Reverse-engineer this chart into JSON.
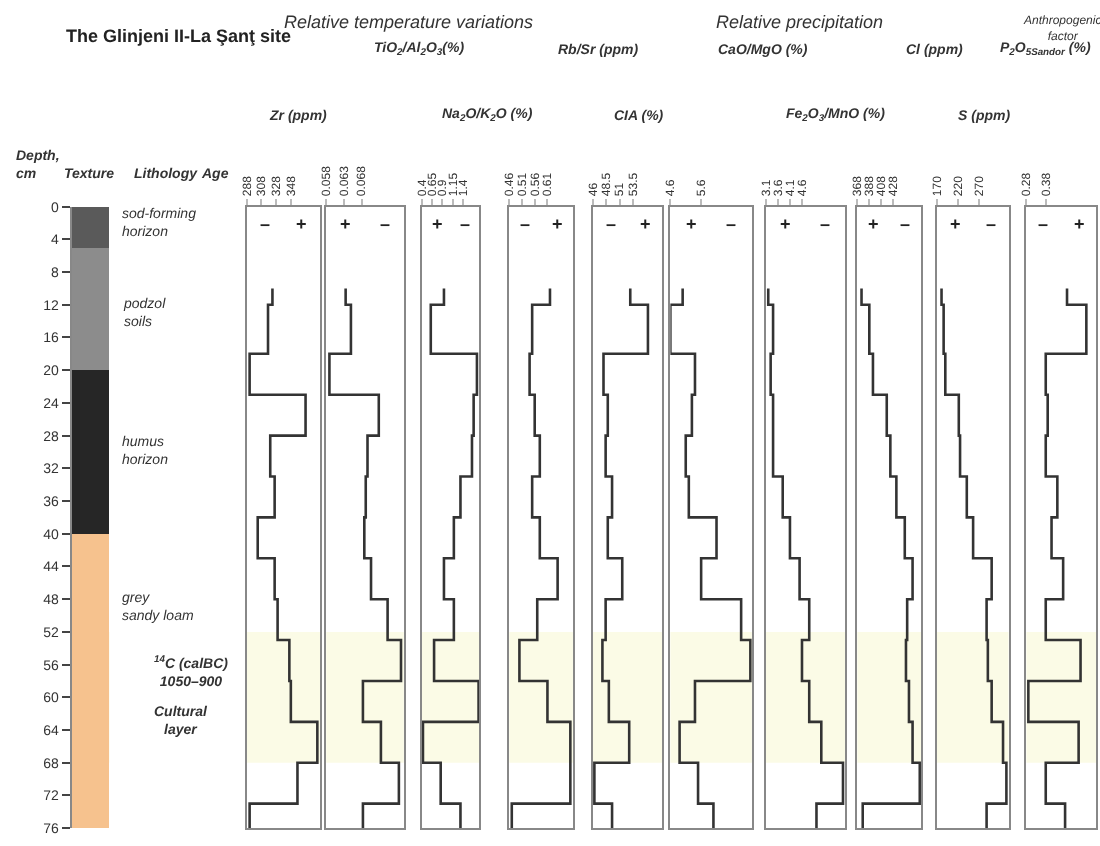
{
  "chart_data": [
    {
      "type": "bar",
      "stacked": true,
      "title": "The Glinjeni II-La Şanţ site",
      "ylabel": "Depth, cm",
      "categories": [
        null
      ],
      "ylim": [
        76,
        0
      ],
      "yticks": [
        0,
        4,
        8,
        12,
        16,
        20,
        24,
        28,
        32,
        36,
        40,
        44,
        48,
        52,
        56,
        60,
        64,
        68,
        72,
        76
      ],
      "tick_labels": "y",
      "series": [
        {
          "color": "#5a5a5a",
          "values": [
            5
          ]
        },
        {
          "color": "#8c8c8c",
          "values": [
            15
          ]
        },
        {
          "color": "#262626",
          "values": [
            20
          ]
        },
        {
          "color": "#f6c28e",
          "values": [
            36
          ]
        }
      ],
      "bands": [
        {
          "axis": "y",
          "from": 52,
          "to": 68,
          "color": "#fbfbe6"
        }
      ],
      "annotations": [
        "Texture",
        "Lithology",
        "Age",
        "sod-forming horizon",
        "podzol soils",
        "humus horizon",
        "grey sandy loam",
        "$^{14}$C (calBC) 1050–900",
        "Cultural layer"
      ]
    },
    {
      "type": "step",
      "orientation": "horizontal",
      "xlabel": "Zr (ppm)",
      "x": [
        10,
        12,
        18,
        23,
        28,
        33,
        38,
        43,
        48,
        53,
        58,
        63,
        68,
        73,
        76
      ],
      "values": [
        323,
        317,
        292,
        368,
        320,
        326,
        303,
        326,
        330,
        346,
        348,
        384,
        357,
        292,
        292
      ],
      "color": "#333333",
      "xlim": [
        288,
        388
      ],
      "xticks": [
        288,
        308,
        328,
        348
      ],
      "ylim": [
        76,
        0
      ],
      "tick_labels": "x",
      "bands": [
        {
          "axis": "y",
          "from": 52,
          "to": 68,
          "color": "#fbfbe6"
        }
      ],
      "annotations": [
        "–",
        "+",
        "Relative temperature variations"
      ]
    },
    {
      "type": "step",
      "orientation": "horizontal",
      "xlabel": "TiO$_{2}$/Al$_{2}$O$_{3}$(%)",
      "x": [
        10,
        12,
        18,
        23,
        28,
        33,
        38,
        43,
        48,
        53,
        58,
        63,
        68,
        73,
        76
      ],
      "values": [
        0.0635,
        0.065,
        0.0589,
        0.0729,
        0.0697,
        0.0692,
        0.0688,
        0.0707,
        0.0754,
        0.0792,
        0.0684,
        0.0735,
        0.0786,
        0.0684,
        0.0684
      ],
      "color": "#333333",
      "xlim": [
        0.058,
        0.08
      ],
      "xticks": [
        0.058,
        0.063,
        0.068
      ],
      "ylim": [
        76,
        0
      ],
      "tick_labels": "x",
      "bands": [
        {
          "axis": "y",
          "from": 52,
          "to": 68,
          "color": "#fbfbe6"
        }
      ],
      "annotations": [
        "+",
        "–"
      ]
    },
    {
      "type": "step",
      "orientation": "horizontal",
      "xlabel": "Na$_{2}$O/K$_{2}$O (%)",
      "x": [
        10,
        12,
        18,
        23,
        28,
        33,
        38,
        43,
        48,
        53,
        58,
        63,
        68,
        73,
        76
      ],
      "values": [
        0.94,
        0.62,
        1.74,
        1.66,
        1.62,
        1.34,
        1.18,
        0.94,
        1.18,
        0.7,
        1.78,
        0.43,
        0.86,
        1.34,
        1.34
      ],
      "color": "#333333",
      "xlim": [
        0.4,
        1.8
      ],
      "xticks": [
        0.4,
        0.65,
        0.9,
        1.15,
        1.4
      ],
      "ylim": [
        76,
        0
      ],
      "tick_labels": "x",
      "bands": [
        {
          "axis": "y",
          "from": 52,
          "to": 68,
          "color": "#fbfbe6"
        }
      ],
      "annotations": [
        "+",
        "–"
      ]
    },
    {
      "type": "step",
      "orientation": "horizontal",
      "xlabel": "Rb/Sr (ppm)",
      "x": [
        10,
        12,
        18,
        23,
        28,
        33,
        38,
        43,
        48,
        53,
        58,
        63,
        68,
        73,
        76
      ],
      "values": [
        0.62,
        0.55,
        0.54,
        0.56,
        0.58,
        0.55,
        0.58,
        0.65,
        0.57,
        0.5,
        0.61,
        0.7,
        0.7,
        0.47,
        0.47
      ],
      "color": "#333333",
      "xlim": [
        0.46,
        0.71
      ],
      "xticks": [
        0.46,
        0.51,
        0.56,
        0.61
      ],
      "ylim": [
        76,
        0
      ],
      "tick_labels": "x",
      "bands": [
        {
          "axis": "y",
          "from": 52,
          "to": 68,
          "color": "#fbfbe6"
        }
      ],
      "annotations": [
        "–",
        "+"
      ]
    },
    {
      "type": "step",
      "orientation": "horizontal",
      "xlabel": "CIA (%)",
      "x": [
        10,
        12,
        18,
        23,
        28,
        33,
        38,
        43,
        48,
        53,
        58,
        63,
        68,
        73,
        76
      ],
      "values": [
        53.0,
        56.3,
        48.0,
        48.8,
        48.4,
        49.6,
        48.8,
        51.5,
        48.4,
        47.8,
        49.0,
        52.8,
        46.3,
        49.6,
        49.6
      ],
      "color": "#333333",
      "xlim": [
        46,
        59
      ],
      "xticks": [
        46,
        48.5,
        51,
        53.5
      ],
      "ylim": [
        76,
        0
      ],
      "tick_labels": "x",
      "bands": [
        {
          "axis": "y",
          "from": 52,
          "to": 68,
          "color": "#fbfbe6"
        }
      ],
      "annotations": [
        "–",
        "+",
        "Relative precipitation"
      ]
    },
    {
      "type": "step",
      "orientation": "horizontal",
      "xlabel": "CaO/MgO (%)",
      "x": [
        10,
        12,
        18,
        23,
        28,
        33,
        38,
        43,
        48,
        53,
        58,
        63,
        68,
        73,
        76
      ],
      "values": [
        5.0,
        4.6,
        5.4,
        5.3,
        5.1,
        5.2,
        6.1,
        5.6,
        6.9,
        7.2,
        5.4,
        4.9,
        5.5,
        6.0,
        6.0
      ],
      "color": "#333333",
      "xlim": [
        4.6,
        7.25
      ],
      "xticks": [
        4.6,
        5.6
      ],
      "ylim": [
        76,
        0
      ],
      "tick_labels": "x",
      "bands": [
        {
          "axis": "y",
          "from": 52,
          "to": 68,
          "color": "#fbfbe6"
        }
      ],
      "annotations": [
        "+",
        "–"
      ]
    },
    {
      "type": "step",
      "orientation": "horizontal",
      "xlabel": "Fe$_{2}$O$_{3}$/MnO (%)",
      "x": [
        10,
        12,
        18,
        23,
        28,
        33,
        38,
        43,
        48,
        53,
        58,
        63,
        68,
        73,
        76
      ],
      "values": [
        3.2,
        3.4,
        3.3,
        3.4,
        3.4,
        3.8,
        4.1,
        4.5,
        4.9,
        4.6,
        4.9,
        5.4,
        6.3,
        5.2,
        5.2
      ],
      "color": "#333333",
      "xlim": [
        3.1,
        6.4
      ],
      "xticks": [
        3.1,
        3.6,
        4.1,
        4.6
      ],
      "ylim": [
        76,
        0
      ],
      "tick_labels": "x",
      "bands": [
        {
          "axis": "y",
          "from": 52,
          "to": 68,
          "color": "#fbfbe6"
        }
      ],
      "annotations": [
        "+",
        "–"
      ]
    },
    {
      "type": "step",
      "orientation": "horizontal",
      "xlabel": "Cl (ppm)",
      "x": [
        10,
        12,
        18,
        23,
        28,
        33,
        38,
        43,
        48,
        53,
        58,
        63,
        68,
        73,
        76
      ],
      "values": [
        375,
        388,
        394,
        417,
        423,
        433,
        447,
        460,
        451,
        449,
        454,
        460,
        472,
        377,
        377
      ],
      "color": "#333333",
      "xlim": [
        368,
        474
      ],
      "xticks": [
        368,
        388,
        408,
        428
      ],
      "ylim": [
        76,
        0
      ],
      "tick_labels": "x",
      "bands": [
        {
          "axis": "y",
          "from": 52,
          "to": 68,
          "color": "#fbfbe6"
        }
      ],
      "annotations": [
        "+",
        "–"
      ]
    },
    {
      "type": "step",
      "orientation": "horizontal",
      "xlabel": "S (ppm)",
      "x": [
        10,
        12,
        18,
        23,
        28,
        33,
        38,
        43,
        48,
        53,
        58,
        63,
        68,
        73,
        76
      ],
      "values": [
        181,
        186,
        190,
        222,
        225,
        241,
        256,
        300,
        288,
        291,
        300,
        327,
        335,
        288,
        288
      ],
      "color": "#333333",
      "xlim": [
        170,
        340
      ],
      "xticks": [
        170,
        220,
        270
      ],
      "ylim": [
        76,
        0
      ],
      "tick_labels": "x",
      "bands": [
        {
          "axis": "y",
          "from": 52,
          "to": 68,
          "color": "#fbfbe6"
        }
      ],
      "annotations": [
        "+",
        "–"
      ]
    },
    {
      "type": "step",
      "orientation": "horizontal",
      "xlabel": "P$_{2}$O$_{5Sandor}$ (%)",
      "x": [
        10,
        12,
        18,
        23,
        28,
        33,
        38,
        43,
        48,
        53,
        58,
        63,
        68,
        73,
        76
      ],
      "values": [
        0.49,
        0.59,
        0.38,
        0.39,
        0.38,
        0.44,
        0.41,
        0.47,
        0.38,
        0.56,
        0.29,
        0.55,
        0.38,
        0.48,
        0.48
      ],
      "color": "#333333",
      "xlim": [
        0.28,
        0.64
      ],
      "xticks": [
        0.28,
        0.38
      ],
      "ylim": [
        76,
        0
      ],
      "tick_labels": "x",
      "bands": [
        {
          "axis": "y",
          "from": 52,
          "to": 68,
          "color": "#fbfbe6"
        }
      ],
      "annotations": [
        "–",
        "+",
        "Anthropogenic factor"
      ]
    }
  ]
}
